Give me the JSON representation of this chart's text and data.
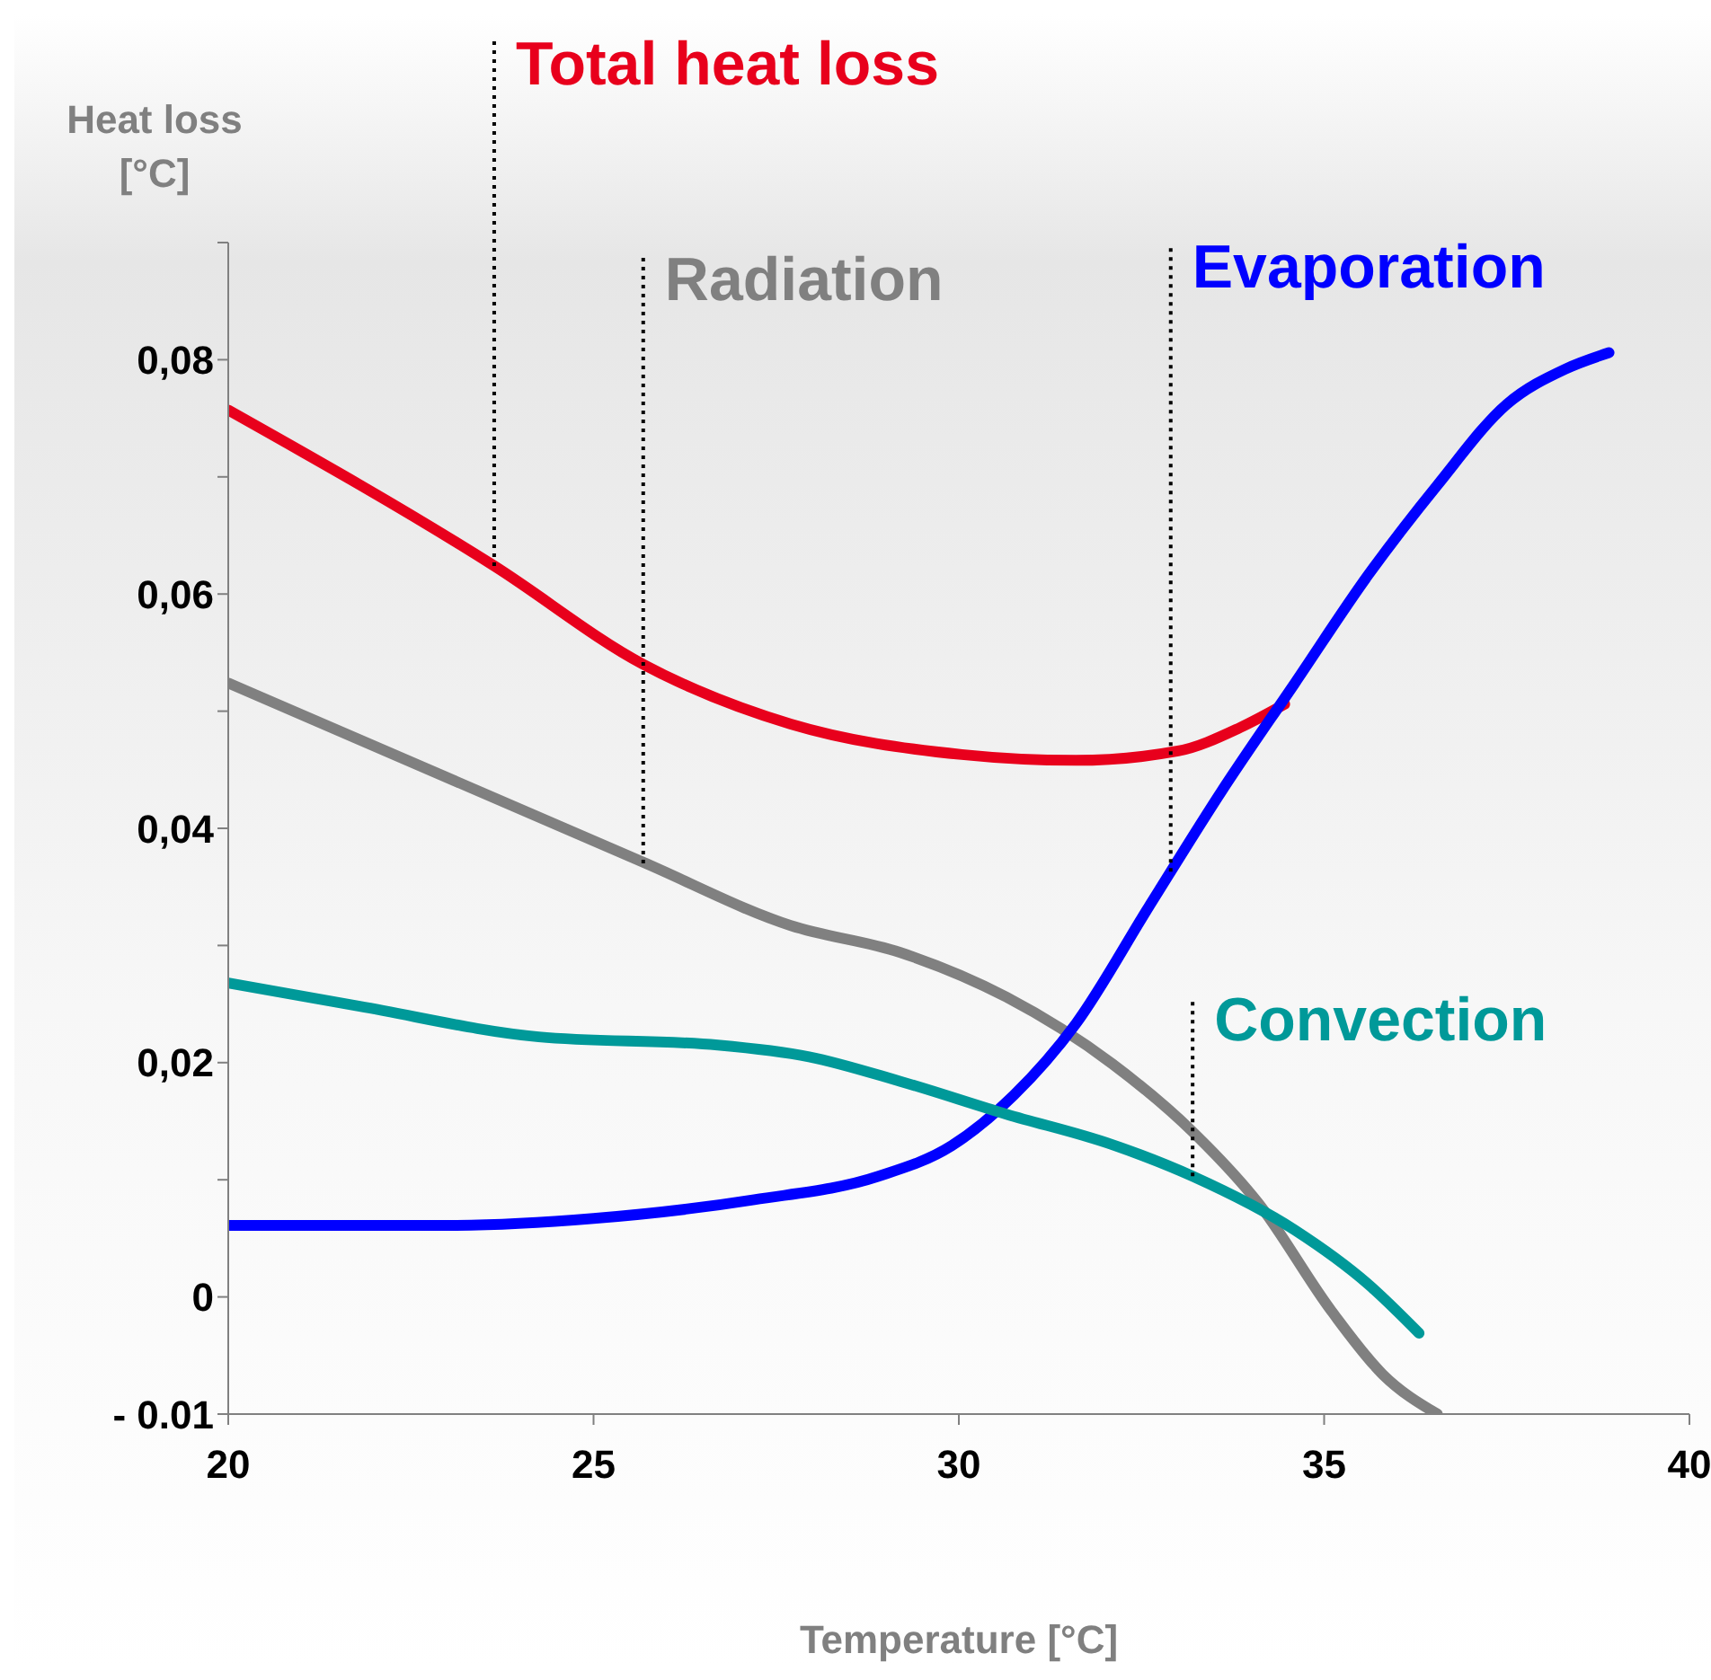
{
  "chart_data": {
    "type": "line",
    "xlabel": "Temperature  [°C]",
    "ylabel": "Heat loss [°C]",
    "xlim": [
      20,
      40
    ],
    "xticks": [
      20,
      25,
      30,
      35,
      40
    ],
    "ylim": [
      -0.01,
      0.09
    ],
    "yticks": [
      {
        "value": -0.01,
        "label": "- 0.01"
      },
      0,
      {
        "value": 0.01,
        "label": null
      },
      {
        "value": 0.02,
        "label": "0,02"
      },
      {
        "value": 0.03,
        "label": null
      },
      {
        "value": 0.04,
        "label": "0,04"
      },
      {
        "value": 0.05,
        "label": null
      },
      {
        "value": 0.06,
        "label": "0,06"
      },
      {
        "value": 0.07,
        "label": null
      },
      {
        "value": 0.08,
        "label": "0,08"
      },
      {
        "value": 0.09,
        "label": null
      }
    ],
    "marker": "none",
    "line_style": "solid",
    "series": [
      {
        "color": "#e8001c",
        "x": [
          20,
          23.64,
          25.68,
          27.7,
          30.04,
          31.6,
          33,
          33.85,
          34.46
        ],
        "values": [
          0.0757,
          0.0624,
          0.054,
          0.0489,
          0.0463,
          0.0458,
          0.0466,
          0.0486,
          0.0506
        ]
      },
      {
        "color": "#808080",
        "x": [
          20,
          25.68,
          27.7,
          29.2,
          30.65,
          32.1,
          33.2,
          34.1,
          35.1,
          35.8,
          36.55
        ],
        "values": [
          0.0524,
          0.0371,
          0.0317,
          0.0294,
          0.0256,
          0.0199,
          0.0141,
          0.008,
          -0.0012,
          -0.0066,
          -0.01
        ]
      },
      {
        "color": "#0000ff",
        "x": [
          20,
          23,
          25,
          27.2,
          28.9,
          29.9,
          30.75,
          31.6,
          32.6,
          33.6,
          34.6,
          35.6,
          36.55,
          37.5,
          38.3,
          38.9
        ],
        "values": [
          0.0061,
          0.0061,
          0.0067,
          0.0083,
          0.0103,
          0.0129,
          0.0172,
          0.0233,
          0.0333,
          0.0432,
          0.0524,
          0.0616,
          0.0693,
          0.0762,
          0.0792,
          0.0806
        ]
      },
      {
        "color": "#009999",
        "x": [
          20,
          21.8,
          24.25,
          26.7,
          27.95,
          29.2,
          30.65,
          32.1,
          33.2,
          34.6,
          35.6,
          36.3
        ],
        "values": [
          0.0268,
          0.0248,
          0.0222,
          0.0215,
          0.0205,
          0.0184,
          0.0156,
          0.013,
          0.0103,
          0.0057,
          0.0011,
          -0.0031
        ]
      }
    ],
    "annotations": [
      {
        "text": "Total heat loss",
        "x": 23.64,
        "y": 0.0624
      },
      {
        "text": "Radiation",
        "x": 25.68,
        "y": 0.037
      },
      {
        "text": "Evaporation",
        "x": 32.9,
        "y": 0.0363
      },
      {
        "text": "Convection",
        "x": 33.2,
        "y": 0.0103
      }
    ]
  }
}
